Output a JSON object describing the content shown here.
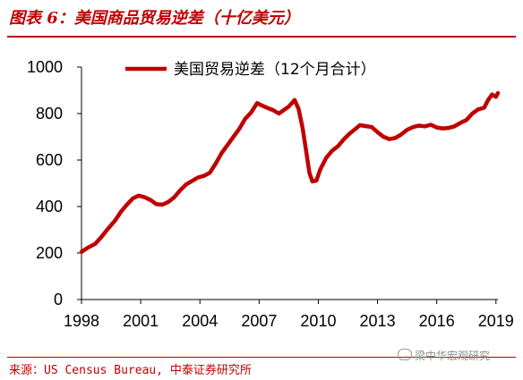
{
  "header": {
    "title": "图表 6：美国商品贸易逆差（十亿美元）"
  },
  "footer": {
    "source": "来源：US Census Bureau, 中泰证券研究所",
    "watermark": "梁中华宏观研究"
  },
  "colors": {
    "accent": "#c00000",
    "axis": "#000000"
  },
  "chart_data": {
    "type": "line",
    "title": "",
    "xlabel": "",
    "ylabel": "",
    "xlim": [
      1998.0,
      2019.1
    ],
    "ylim": [
      0,
      1000
    ],
    "y_ticks": [
      0,
      200,
      400,
      600,
      800,
      1000
    ],
    "x_ticks": [
      1998,
      2001,
      2004,
      2007,
      2010,
      2013,
      2016,
      2019
    ],
    "grid": false,
    "legend_position": "top",
    "series": [
      {
        "name": "美国贸易逆差（12个月合计）",
        "color": "#c00000",
        "points": [
          [
            1998.0,
            205
          ],
          [
            1998.3,
            222
          ],
          [
            1998.7,
            240
          ],
          [
            1999.0,
            268
          ],
          [
            1999.3,
            300
          ],
          [
            1999.7,
            340
          ],
          [
            2000.0,
            378
          ],
          [
            2000.3,
            408
          ],
          [
            2000.6,
            435
          ],
          [
            2000.9,
            447
          ],
          [
            2001.2,
            440
          ],
          [
            2001.5,
            428
          ],
          [
            2001.8,
            410
          ],
          [
            2002.1,
            408
          ],
          [
            2002.4,
            420
          ],
          [
            2002.7,
            440
          ],
          [
            2003.0,
            470
          ],
          [
            2003.3,
            495
          ],
          [
            2003.6,
            510
          ],
          [
            2003.9,
            525
          ],
          [
            2004.2,
            532
          ],
          [
            2004.5,
            545
          ],
          [
            2004.8,
            585
          ],
          [
            2005.1,
            630
          ],
          [
            2005.4,
            665
          ],
          [
            2005.7,
            700
          ],
          [
            2006.0,
            735
          ],
          [
            2006.3,
            778
          ],
          [
            2006.6,
            805
          ],
          [
            2006.9,
            845
          ],
          [
            2007.1,
            836
          ],
          [
            2007.4,
            825
          ],
          [
            2007.7,
            815
          ],
          [
            2008.0,
            800
          ],
          [
            2008.2,
            812
          ],
          [
            2008.5,
            830
          ],
          [
            2008.8,
            858
          ],
          [
            2009.0,
            820
          ],
          [
            2009.2,
            740
          ],
          [
            2009.4,
            630
          ],
          [
            2009.55,
            545
          ],
          [
            2009.7,
            508
          ],
          [
            2009.9,
            512
          ],
          [
            2010.1,
            560
          ],
          [
            2010.4,
            610
          ],
          [
            2010.7,
            640
          ],
          [
            2011.0,
            660
          ],
          [
            2011.3,
            690
          ],
          [
            2011.6,
            715
          ],
          [
            2011.9,
            735
          ],
          [
            2012.1,
            750
          ],
          [
            2012.4,
            746
          ],
          [
            2012.7,
            742
          ],
          [
            2013.0,
            720
          ],
          [
            2013.3,
            700
          ],
          [
            2013.6,
            690
          ],
          [
            2013.9,
            695
          ],
          [
            2014.2,
            710
          ],
          [
            2014.5,
            730
          ],
          [
            2014.8,
            742
          ],
          [
            2015.1,
            748
          ],
          [
            2015.4,
            745
          ],
          [
            2015.7,
            752
          ],
          [
            2016.0,
            740
          ],
          [
            2016.3,
            736
          ],
          [
            2016.6,
            738
          ],
          [
            2016.9,
            745
          ],
          [
            2017.2,
            760
          ],
          [
            2017.5,
            772
          ],
          [
            2017.8,
            800
          ],
          [
            2018.1,
            818
          ],
          [
            2018.4,
            825
          ],
          [
            2018.6,
            858
          ],
          [
            2018.8,
            882
          ],
          [
            2019.0,
            872
          ],
          [
            2019.1,
            888
          ]
        ]
      }
    ]
  }
}
